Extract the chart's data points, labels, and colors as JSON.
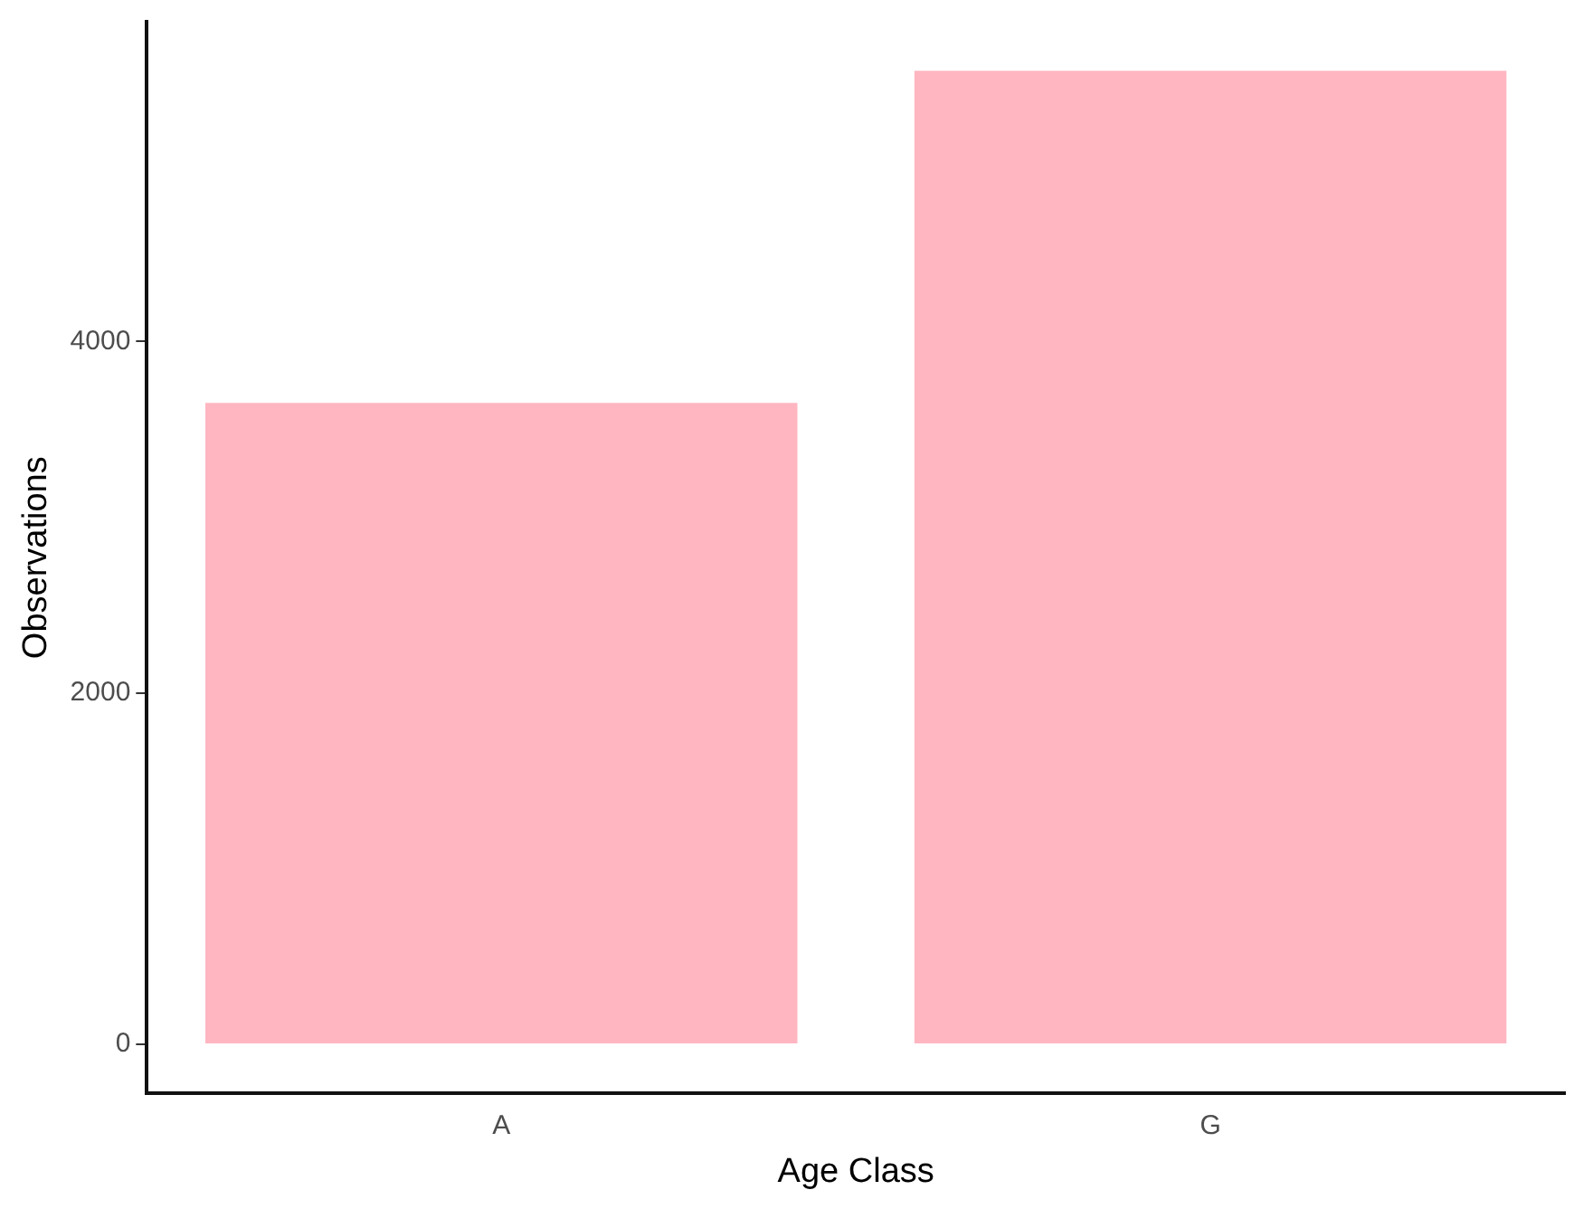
{
  "chart_data": {
    "type": "bar",
    "xlabel": "Age Class",
    "ylabel": "Observations",
    "categories": [
      "A",
      "G"
    ],
    "values": [
      3650,
      5540
    ],
    "color": "#ffb6c1",
    "ylim": [
      -280,
      5820
    ],
    "yticks": [
      0,
      2000,
      4000
    ],
    "grid": false,
    "legend": false
  }
}
